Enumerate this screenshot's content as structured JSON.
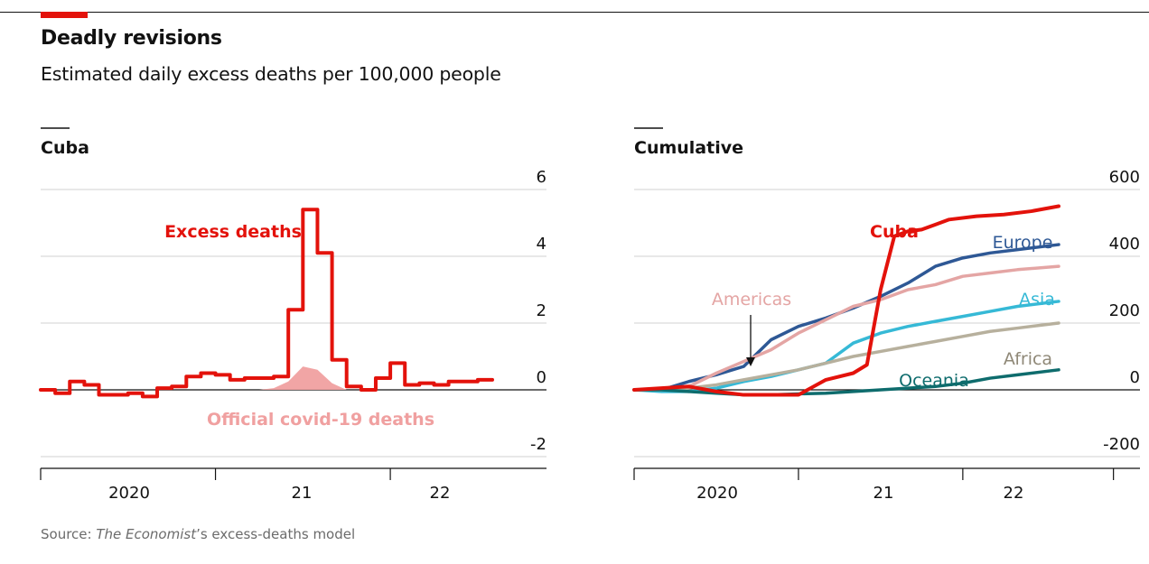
{
  "header": {
    "title": "Deadly revisions",
    "subtitle": "Estimated daily excess deaths per 100,000 people"
  },
  "source": {
    "prefix": "Source: ",
    "publication": "The Economist",
    "suffix": "’s excess-deaths model"
  },
  "colors": {
    "brand_red": "#e3120b",
    "official_pink": "#f0a0a0",
    "europe": "#2e5895",
    "americas": "#e4a5a4",
    "asia": "#36b9d6",
    "africa": "#b7b09d",
    "oceania": "#0e6c6d"
  },
  "chart_data": [
    {
      "type": "line",
      "title": "Cuba",
      "x_labels": [
        "2020",
        "21",
        "22"
      ],
      "y_ticks": [
        "6",
        "4",
        "2",
        "0",
        "-2"
      ],
      "ylim": [
        -2,
        6
      ],
      "xlim": [
        "2020-01",
        "2022-08"
      ],
      "grid": true,
      "series": [
        {
          "name": "Excess deaths",
          "color": "#e3120b",
          "x": [
            "2020-01",
            "2020-02",
            "2020-03",
            "2020-04",
            "2020-05",
            "2020-06",
            "2020-07",
            "2020-08",
            "2020-09",
            "2020-10",
            "2020-11",
            "2020-12",
            "2021-01",
            "2021-02",
            "2021-03",
            "2021-04",
            "2021-05",
            "2021-06",
            "2021-07",
            "2021-08",
            "2021-09",
            "2021-10",
            "2021-11",
            "2021-12",
            "2022-01",
            "2022-02",
            "2022-03",
            "2022-04",
            "2022-05",
            "2022-06",
            "2022-07",
            "2022-08"
          ],
          "values": [
            0.0,
            -0.1,
            0.25,
            0.15,
            -0.15,
            -0.15,
            -0.1,
            -0.2,
            0.05,
            0.1,
            0.4,
            0.5,
            0.45,
            0.3,
            0.35,
            0.35,
            0.4,
            2.4,
            5.4,
            4.1,
            0.9,
            0.1,
            0.0,
            0.35,
            0.8,
            0.15,
            0.2,
            0.15,
            0.25,
            0.25,
            0.3,
            0.3
          ]
        },
        {
          "name": "Official covid-19 deaths",
          "color": "#f0a0a0",
          "x": [
            "2021-04",
            "2021-05",
            "2021-06",
            "2021-07",
            "2021-08",
            "2021-09",
            "2021-10"
          ],
          "values": [
            0.0,
            0.05,
            0.25,
            0.7,
            0.6,
            0.2,
            0.0
          ]
        }
      ]
    },
    {
      "type": "line",
      "title": "Cumulative",
      "x_labels": [
        "2020",
        "21",
        "22"
      ],
      "y_ticks": [
        "600",
        "400",
        "200",
        "0",
        "-200"
      ],
      "ylim": [
        -200,
        600
      ],
      "xlim": [
        "2020-01",
        "2022-08"
      ],
      "grid": true,
      "series": [
        {
          "name": "Cuba",
          "color": "#e3120b",
          "x": [
            "2020-01",
            "2020-03",
            "2020-05",
            "2020-07",
            "2020-09",
            "2020-11",
            "2021-01",
            "2021-03",
            "2021-05",
            "2021-06",
            "2021-07",
            "2021-08",
            "2021-09",
            "2021-10",
            "2021-11",
            "2021-12",
            "2022-02",
            "2022-04",
            "2022-06",
            "2022-08"
          ],
          "values": [
            0,
            5,
            10,
            -5,
            -15,
            -15,
            -15,
            30,
            50,
            75,
            300,
            460,
            475,
            480,
            495,
            510,
            520,
            525,
            535,
            550
          ]
        },
        {
          "name": "Europe",
          "color": "#2e5895",
          "x": [
            "2020-01",
            "2020-03",
            "2020-05",
            "2020-07",
            "2020-09",
            "2020-11",
            "2021-01",
            "2021-03",
            "2021-05",
            "2021-07",
            "2021-09",
            "2021-11",
            "2022-01",
            "2022-03",
            "2022-05",
            "2022-08"
          ],
          "values": [
            0,
            0,
            25,
            45,
            70,
            150,
            190,
            215,
            245,
            280,
            320,
            370,
            395,
            410,
            420,
            435
          ]
        },
        {
          "name": "Americas",
          "color": "#e4a5a4",
          "x": [
            "2020-01",
            "2020-03",
            "2020-05",
            "2020-07",
            "2020-09",
            "2020-11",
            "2021-01",
            "2021-03",
            "2021-05",
            "2021-07",
            "2021-09",
            "2021-11",
            "2022-01",
            "2022-03",
            "2022-05",
            "2022-08"
          ],
          "values": [
            0,
            0,
            10,
            50,
            85,
            120,
            170,
            210,
            250,
            270,
            300,
            315,
            340,
            350,
            360,
            370
          ]
        },
        {
          "name": "Asia",
          "color": "#36b9d6",
          "x": [
            "2020-01",
            "2020-03",
            "2020-05",
            "2020-07",
            "2020-09",
            "2020-11",
            "2021-01",
            "2021-03",
            "2021-05",
            "2021-07",
            "2021-09",
            "2021-11",
            "2022-01",
            "2022-03",
            "2022-05",
            "2022-08"
          ],
          "values": [
            0,
            -5,
            -5,
            5,
            25,
            40,
            60,
            80,
            140,
            170,
            190,
            205,
            220,
            235,
            250,
            265
          ]
        },
        {
          "name": "Africa",
          "color": "#b7b09d",
          "x": [
            "2020-01",
            "2020-03",
            "2020-05",
            "2020-07",
            "2020-09",
            "2020-11",
            "2021-01",
            "2021-03",
            "2021-05",
            "2021-07",
            "2021-09",
            "2021-11",
            "2022-01",
            "2022-03",
            "2022-05",
            "2022-08"
          ],
          "values": [
            0,
            0,
            5,
            15,
            30,
            45,
            60,
            80,
            100,
            115,
            130,
            145,
            160,
            175,
            185,
            200
          ]
        },
        {
          "name": "Oceania",
          "color": "#0e6c6d",
          "x": [
            "2020-01",
            "2020-03",
            "2020-05",
            "2020-07",
            "2020-09",
            "2020-11",
            "2021-01",
            "2021-03",
            "2021-05",
            "2021-07",
            "2021-09",
            "2021-11",
            "2022-01",
            "2022-03",
            "2022-05",
            "2022-08"
          ],
          "values": [
            0,
            0,
            -5,
            -10,
            -15,
            -15,
            -12,
            -10,
            -5,
            0,
            5,
            10,
            20,
            35,
            45,
            60
          ]
        }
      ]
    }
  ]
}
